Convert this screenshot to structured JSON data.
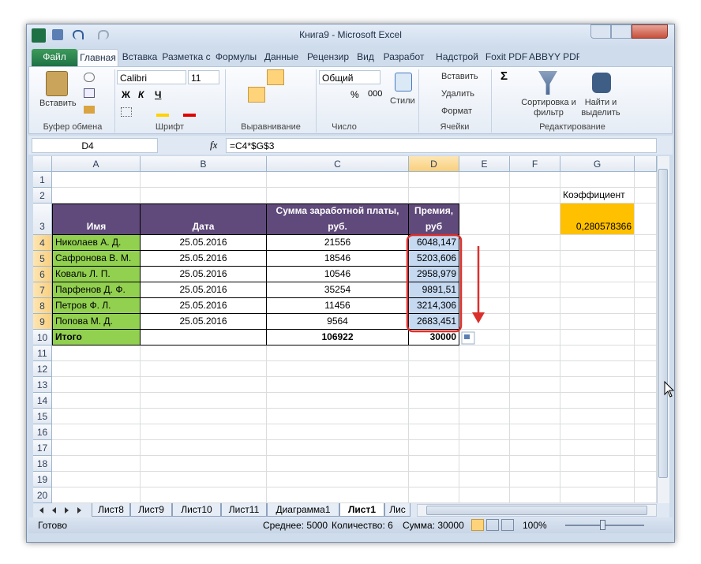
{
  "window": {
    "title": "Книга9 - Microsoft Excel"
  },
  "ribbon": {
    "tabs": [
      "Файл",
      "Главная",
      "Вставка",
      "Разметка с",
      "Формулы",
      "Данные",
      "Рецензир",
      "Вид",
      "Разработ",
      "Надстрой",
      "Foxit PDF",
      "ABBYY PDF"
    ],
    "groups": [
      "Буфер обмена",
      "Шрифт",
      "Выравнивание",
      "Число",
      "Ячейки",
      "Редактирование"
    ],
    "paste": "Вставить",
    "font_name": "Calibri",
    "font_size": "11",
    "bold": "Ж",
    "italic": "К",
    "underline": "Ч",
    "number_format": "Общий",
    "percent": "%",
    "thousands": "000",
    "styles": "Стили",
    "insert": "Вставить",
    "delete": "Удалить",
    "format": "Формат",
    "sum": "Σ",
    "sort": "Сортировка и фильтр",
    "find": "Найти и выделить"
  },
  "formula_bar": {
    "name_box": "D4",
    "fx": "fx",
    "formula": "=C4*$G$3"
  },
  "sheet": {
    "columns": [
      "A",
      "B",
      "C",
      "D",
      "E",
      "F",
      "G"
    ],
    "rows": [
      "1",
      "2",
      "3",
      "4",
      "5",
      "6",
      "7",
      "8",
      "9",
      "10",
      "11",
      "12",
      "13",
      "14",
      "15",
      "16",
      "17",
      "18",
      "19",
      "20"
    ],
    "cells": [
      [
        null,
        null,
        null,
        null,
        null,
        null,
        null
      ],
      [
        null,
        null,
        null,
        null,
        null,
        null,
        "Коэффициент"
      ],
      [
        "Имя",
        "Дата",
        "Сумма заработной платы, руб.",
        "Премия, руб",
        null,
        null,
        "0,280578366"
      ],
      [
        "Николаев А. Д.",
        "25.05.2016",
        "21556",
        "6048,147",
        null,
        null,
        null
      ],
      [
        "Сафронова В. М.",
        "25.05.2016",
        "18546",
        "5203,606",
        null,
        null,
        null
      ],
      [
        "Коваль Л. П.",
        "25.05.2016",
        "10546",
        "2958,979",
        null,
        null,
        null
      ],
      [
        "Парфенов Д. Ф.",
        "25.05.2016",
        "35254",
        "9891,51",
        null,
        null,
        null
      ],
      [
        "Петров Ф. Л.",
        "25.05.2016",
        "11456",
        "3214,306",
        null,
        null,
        null
      ],
      [
        "Попова М. Д.",
        "25.05.2016",
        "9564",
        "2683,451",
        null,
        null,
        null
      ],
      [
        "Итого",
        null,
        "106922",
        "30000",
        null,
        null,
        null
      ],
      [
        null,
        null,
        null,
        null,
        null,
        null,
        null
      ],
      [
        null,
        null,
        null,
        null,
        null,
        null,
        null
      ],
      [
        null,
        null,
        null,
        null,
        null,
        null,
        null
      ],
      [
        null,
        null,
        null,
        null,
        null,
        null,
        null
      ],
      [
        null,
        null,
        null,
        null,
        null,
        null,
        null
      ],
      [
        null,
        null,
        null,
        null,
        null,
        null,
        null
      ],
      [
        null,
        null,
        null,
        null,
        null,
        null,
        null
      ],
      [
        null,
        null,
        null,
        null,
        null,
        null,
        null
      ],
      [
        null,
        null,
        null,
        null,
        null,
        null,
        null
      ],
      [
        null,
        null,
        null,
        null,
        null,
        null,
        null
      ]
    ]
  },
  "sheet_tabs": [
    "Лист8",
    "Лист9",
    "Лист10",
    "Лист11",
    "Диаграмма1",
    "Лист1",
    "Лис"
  ],
  "status_bar": {
    "state": "Готово",
    "average": "Среднее: 5000",
    "count": "Количество: 6",
    "sum": "Сумма: 30000",
    "zoom": "100%"
  }
}
